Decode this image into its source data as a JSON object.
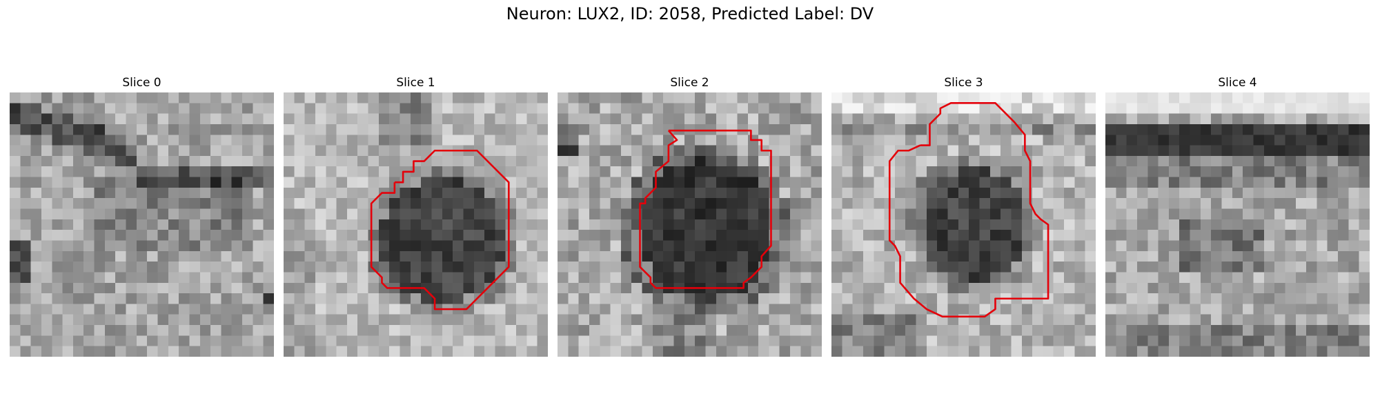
{
  "figure": {
    "title": "Neuron: LUX2, ID: 2058, Predicted Label: DV",
    "colors": {
      "contour": "#e4000a",
      "background": "#ffffff"
    }
  },
  "slices": [
    {
      "title": "Slice 0",
      "has_contour": false
    },
    {
      "title": "Slice 1",
      "has_contour": true
    },
    {
      "title": "Slice 2",
      "has_contour": true
    },
    {
      "title": "Slice 3",
      "has_contour": true
    },
    {
      "title": "Slice 4",
      "has_contour": false
    }
  ]
}
